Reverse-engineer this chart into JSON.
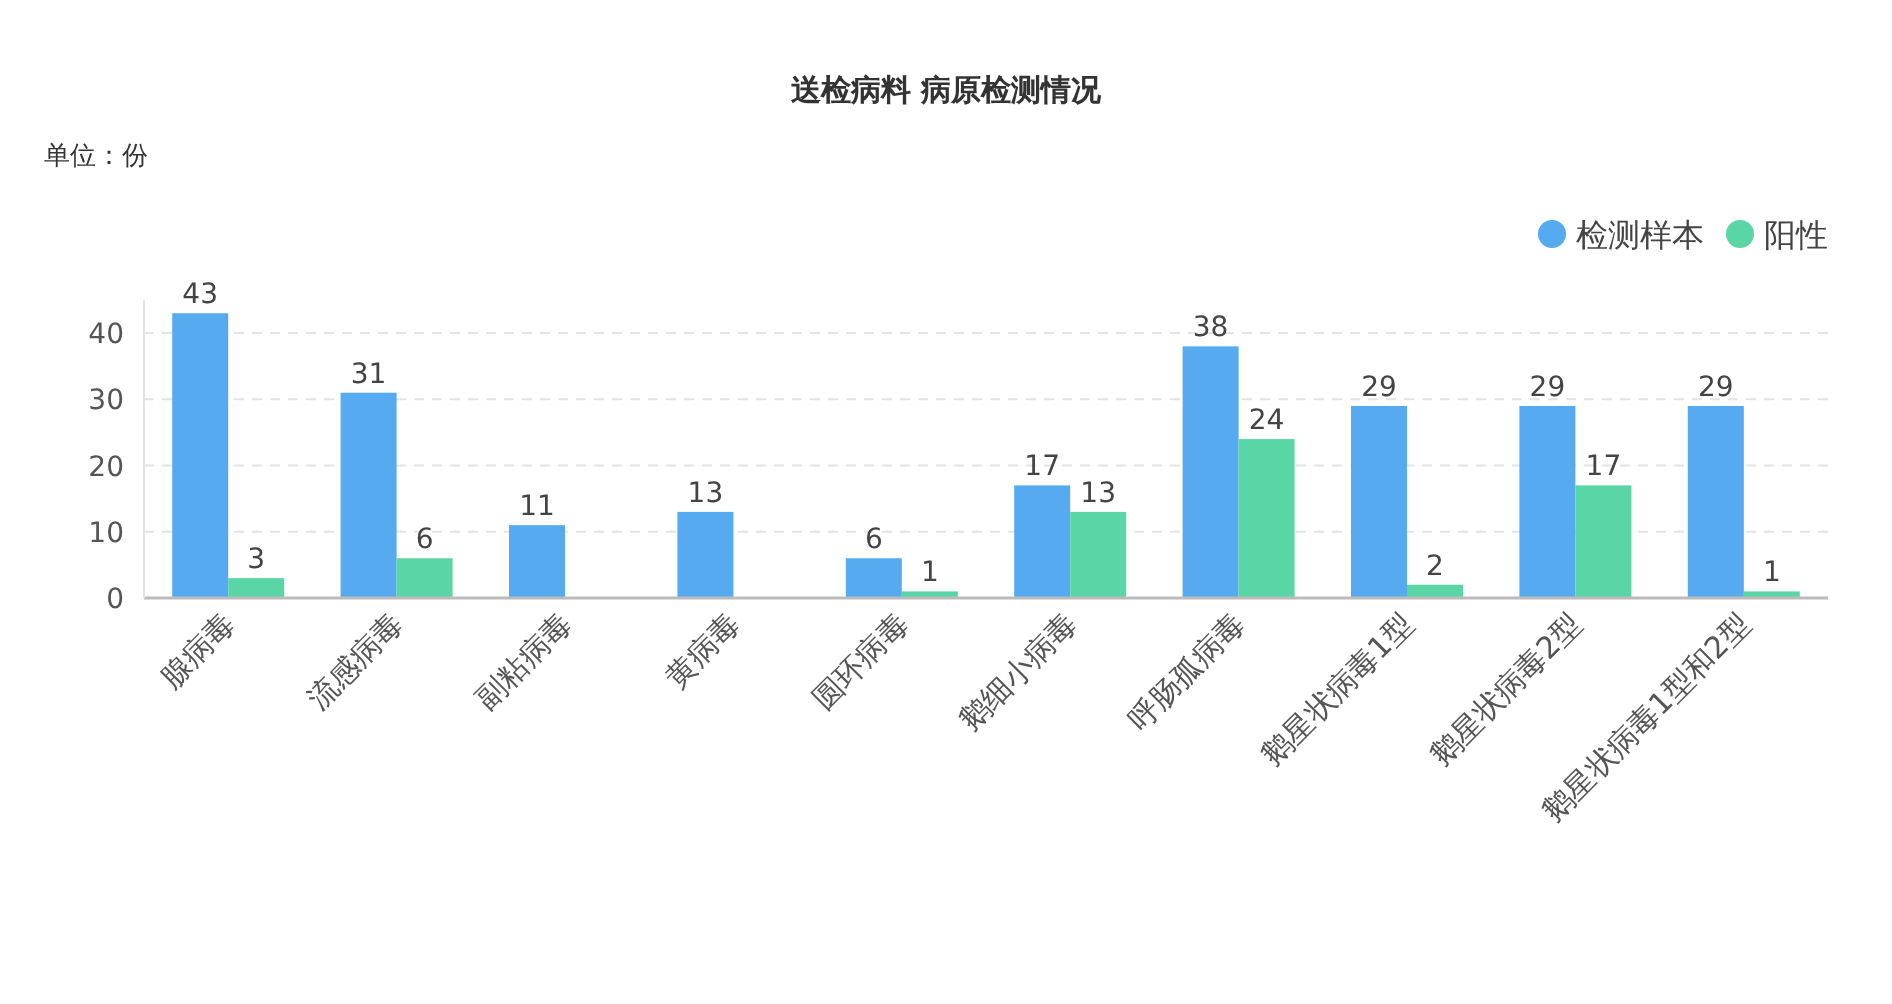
{
  "chart_data": {
    "type": "bar",
    "title": "送检病料 病原检测情况",
    "annotations": [
      "单位：份"
    ],
    "categories": [
      "腺病毒",
      "流感病毒",
      "副粘病毒",
      "黄病毒",
      "圆环病毒",
      "鹅细小病毒",
      "呼肠孤病毒",
      "鹅星状病毒1型",
      "鹅星状病毒2型",
      "鹅星状病毒1型和2型"
    ],
    "series": [
      {
        "name": "检测样本",
        "color": "#55aaf0",
        "values": [
          43,
          31,
          11,
          13,
          6,
          17,
          38,
          29,
          29,
          29
        ]
      },
      {
        "name": "阳性",
        "color": "#5ad6a6",
        "values": [
          3,
          6,
          null,
          null,
          1,
          13,
          24,
          2,
          17,
          1
        ]
      }
    ],
    "ylim": [
      0,
      45
    ],
    "yticks": [
      0,
      10,
      20,
      30,
      40
    ],
    "grid": "y",
    "legend": "top right",
    "data_labels": true
  }
}
